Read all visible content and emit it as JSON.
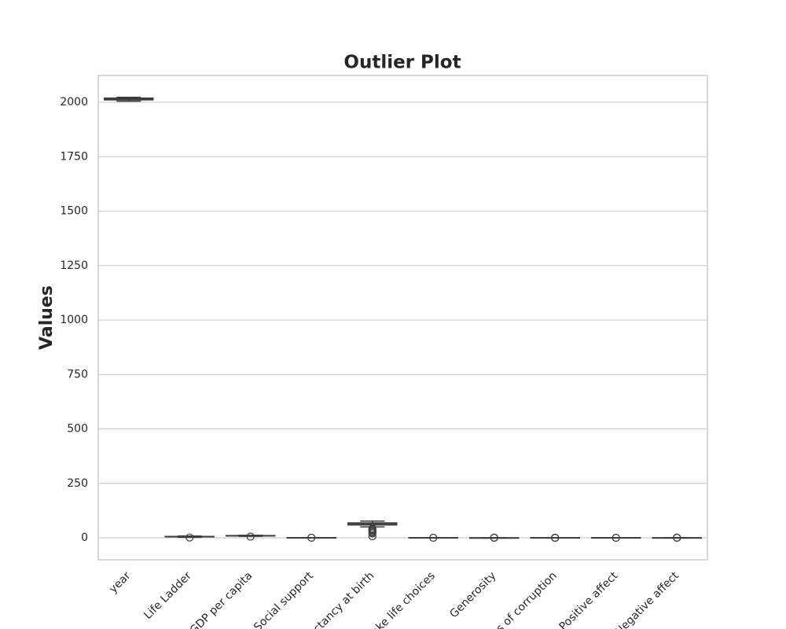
{
  "chart_data": {
    "type": "box",
    "title": "Outlier Plot",
    "y_label": "Values",
    "categories": [
      "year",
      "Life Ladder",
      "GDP per capita",
      "Social support",
      "ectancy at birth",
      "ake life choices",
      "Generosity",
      "ns of corruption",
      "Positive affect",
      "Negative affect"
    ],
    "colors": [
      "#4c72b0",
      "#dd8452",
      "#55a868",
      "#c44e52",
      "#8172b3",
      "#937860",
      "#da8bc3",
      "#8c8c8c",
      "#ccb974",
      "#64b5cd"
    ],
    "boxes": [
      {
        "min": 2005,
        "q1": 2011,
        "median": 2015,
        "q3": 2019,
        "max": 2023,
        "outliers": []
      },
      {
        "min": 2.2,
        "q1": 4.6,
        "median": 5.4,
        "q3": 6.3,
        "max": 8.0,
        "outliers": [
          1.3
        ]
      },
      {
        "min": 6.8,
        "q1": 8.5,
        "median": 9.5,
        "q3": 10.4,
        "max": 11.7,
        "outliers": [
          5.5
        ]
      },
      {
        "min": 0.5,
        "q1": 0.75,
        "median": 0.83,
        "q3": 0.9,
        "max": 0.99,
        "outliers": [
          0.29,
          0.4
        ]
      },
      {
        "min": 50,
        "q1": 59,
        "median": 65,
        "q3": 68.5,
        "max": 77,
        "outliers": [
          6.7,
          20,
          25,
          30,
          35,
          40,
          43
        ]
      },
      {
        "min": 0.36,
        "q1": 0.66,
        "median": 0.77,
        "q3": 0.86,
        "max": 0.99,
        "outliers": [
          0.23,
          0.3
        ]
      },
      {
        "min": -0.34,
        "q1": -0.11,
        "median": -0.02,
        "q3": 0.09,
        "max": 0.38,
        "outliers": [
          0.5,
          0.6,
          0.7
        ]
      },
      {
        "min": 0.43,
        "q1": 0.69,
        "median": 0.8,
        "q3": 0.87,
        "max": 0.98,
        "outliers": [
          0.04,
          0.1,
          0.2,
          0.3
        ]
      },
      {
        "min": 0.32,
        "q1": 0.57,
        "median": 0.66,
        "q3": 0.74,
        "max": 0.88,
        "outliers": [
          0.18,
          0.25
        ]
      },
      {
        "min": 0.08,
        "q1": 0.21,
        "median": 0.26,
        "q3": 0.32,
        "max": 0.49,
        "outliers": [
          0.55,
          0.6,
          0.7
        ]
      }
    ],
    "ylim": [
      -101,
      2123
    ],
    "yticks": [
      0,
      250,
      500,
      750,
      1000,
      1250,
      1500,
      1750,
      2000
    ],
    "grid": true
  }
}
